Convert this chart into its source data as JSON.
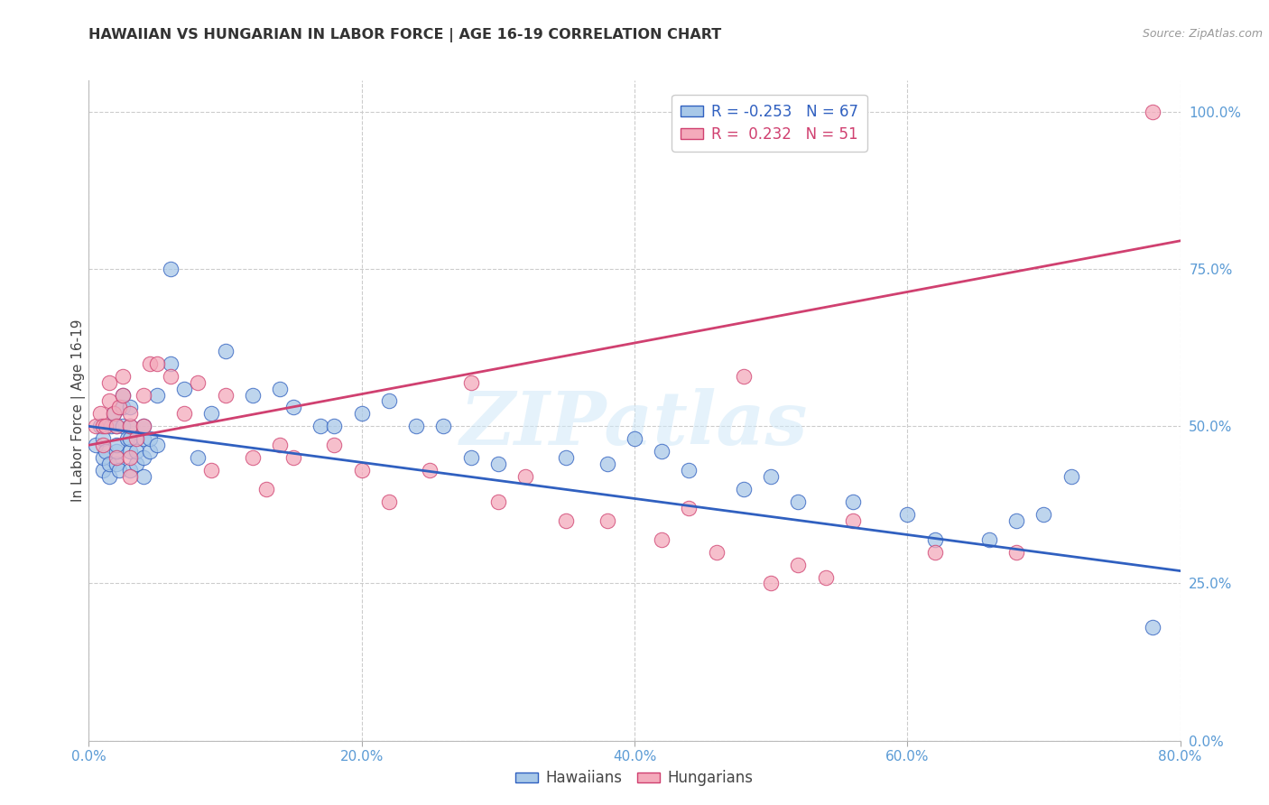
{
  "title": "HAWAIIAN VS HUNGARIAN IN LABOR FORCE | AGE 16-19 CORRELATION CHART",
  "source": "Source: ZipAtlas.com",
  "ylabel": "In Labor Force | Age 16-19",
  "xlim": [
    0.0,
    0.8
  ],
  "ylim": [
    0.0,
    1.05
  ],
  "ytick_labels": [
    "0.0%",
    "25.0%",
    "50.0%",
    "75.0%",
    "100.0%"
  ],
  "ytick_values": [
    0.0,
    0.25,
    0.5,
    0.75,
    1.0
  ],
  "xtick_labels": [
    "0.0%",
    "20.0%",
    "40.0%",
    "60.0%",
    "80.0%"
  ],
  "xtick_values": [
    0.0,
    0.2,
    0.4,
    0.6,
    0.8
  ],
  "legend_blue_r": "-0.253",
  "legend_blue_n": "67",
  "legend_pink_r": "0.232",
  "legend_pink_n": "51",
  "blue_color": "#A8C8E8",
  "pink_color": "#F4AABB",
  "trendline_blue": "#3060C0",
  "trendline_pink": "#D04070",
  "watermark_text": "ZIPatlas",
  "blue_trend_start": 0.5,
  "blue_trend_end": 0.27,
  "pink_trend_start": 0.47,
  "pink_trend_end": 0.795,
  "hawaiians_x": [
    0.005,
    0.008,
    0.01,
    0.01,
    0.01,
    0.012,
    0.015,
    0.015,
    0.016,
    0.018,
    0.02,
    0.02,
    0.02,
    0.02,
    0.022,
    0.025,
    0.025,
    0.025,
    0.028,
    0.03,
    0.03,
    0.03,
    0.03,
    0.03,
    0.035,
    0.035,
    0.04,
    0.04,
    0.04,
    0.04,
    0.045,
    0.045,
    0.05,
    0.05,
    0.06,
    0.06,
    0.07,
    0.08,
    0.09,
    0.1,
    0.12,
    0.14,
    0.15,
    0.17,
    0.18,
    0.2,
    0.22,
    0.24,
    0.26,
    0.28,
    0.3,
    0.35,
    0.38,
    0.4,
    0.42,
    0.44,
    0.48,
    0.5,
    0.52,
    0.56,
    0.6,
    0.62,
    0.66,
    0.68,
    0.7,
    0.72,
    0.78
  ],
  "hawaiians_y": [
    0.47,
    0.5,
    0.43,
    0.45,
    0.48,
    0.46,
    0.42,
    0.44,
    0.5,
    0.52,
    0.44,
    0.46,
    0.47,
    0.5,
    0.43,
    0.5,
    0.53,
    0.55,
    0.48,
    0.43,
    0.46,
    0.48,
    0.5,
    0.53,
    0.44,
    0.46,
    0.42,
    0.45,
    0.48,
    0.5,
    0.46,
    0.48,
    0.47,
    0.55,
    0.6,
    0.75,
    0.56,
    0.45,
    0.52,
    0.62,
    0.55,
    0.56,
    0.53,
    0.5,
    0.5,
    0.52,
    0.54,
    0.5,
    0.5,
    0.45,
    0.44,
    0.45,
    0.44,
    0.48,
    0.46,
    0.43,
    0.4,
    0.42,
    0.38,
    0.38,
    0.36,
    0.32,
    0.32,
    0.35,
    0.36,
    0.42,
    0.18
  ],
  "hungarians_x": [
    0.005,
    0.008,
    0.01,
    0.01,
    0.012,
    0.015,
    0.015,
    0.018,
    0.02,
    0.02,
    0.022,
    0.025,
    0.025,
    0.03,
    0.03,
    0.03,
    0.03,
    0.035,
    0.04,
    0.04,
    0.045,
    0.05,
    0.06,
    0.07,
    0.08,
    0.09,
    0.1,
    0.12,
    0.13,
    0.14,
    0.15,
    0.18,
    0.2,
    0.22,
    0.25,
    0.28,
    0.3,
    0.32,
    0.35,
    0.38,
    0.42,
    0.44,
    0.46,
    0.48,
    0.5,
    0.52,
    0.54,
    0.56,
    0.62,
    0.68,
    0.78
  ],
  "hungarians_y": [
    0.5,
    0.52,
    0.47,
    0.5,
    0.5,
    0.54,
    0.57,
    0.52,
    0.45,
    0.5,
    0.53,
    0.55,
    0.58,
    0.42,
    0.45,
    0.5,
    0.52,
    0.48,
    0.5,
    0.55,
    0.6,
    0.6,
    0.58,
    0.52,
    0.57,
    0.43,
    0.55,
    0.45,
    0.4,
    0.47,
    0.45,
    0.47,
    0.43,
    0.38,
    0.43,
    0.57,
    0.38,
    0.42,
    0.35,
    0.35,
    0.32,
    0.37,
    0.3,
    0.58,
    0.25,
    0.28,
    0.26,
    0.35,
    0.3,
    0.3,
    1.0
  ],
  "background_color": "#FFFFFF",
  "grid_color": "#CCCCCC"
}
